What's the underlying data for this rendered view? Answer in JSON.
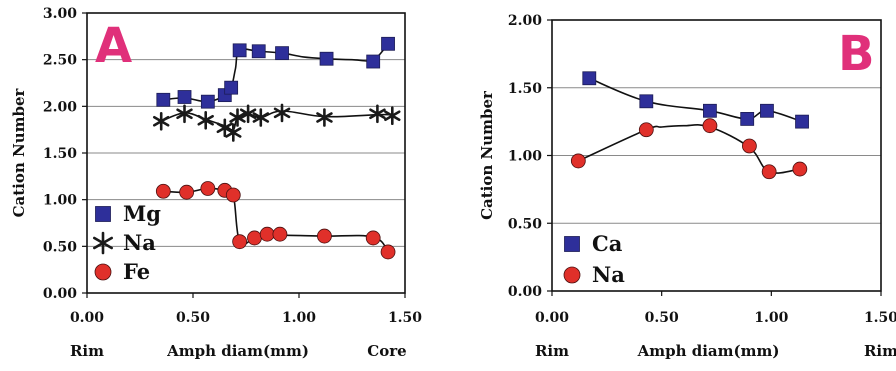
{
  "chart_data": [
    {
      "panel": "A",
      "type": "scatter",
      "ylabel": "Cation Number",
      "xlabel": "Amph diam(mm)",
      "x_end_labels": [
        "Rim",
        "Core"
      ],
      "xlim": [
        0,
        1.5
      ],
      "ylim": [
        0,
        3
      ],
      "xticks": [
        "0.00",
        "0.50",
        "1.00",
        "1.50"
      ],
      "yticks": [
        "0.00",
        "0.50",
        "1.00",
        "1.50",
        "2.00",
        "2.50",
        "3.00"
      ],
      "grid": true,
      "legend_position": "bottom-left",
      "series": [
        {
          "name": "Mg",
          "marker": "square",
          "color": "#2e2f9a",
          "x": [
            0.36,
            0.46,
            0.57,
            0.65,
            0.68,
            0.72,
            0.81,
            0.92,
            1.13,
            1.35,
            1.42
          ],
          "y": [
            2.07,
            2.1,
            2.05,
            2.12,
            2.2,
            2.6,
            2.59,
            2.57,
            2.51,
            2.48,
            2.67
          ],
          "curve_x": [
            0.36,
            0.46,
            0.57,
            0.65,
            0.68,
            0.7,
            0.72,
            0.81,
            0.92,
            1.02,
            1.13,
            1.25,
            1.35,
            1.42
          ],
          "curve_y": [
            2.07,
            2.09,
            2.05,
            2.12,
            2.2,
            2.4,
            2.6,
            2.59,
            2.57,
            2.53,
            2.51,
            2.5,
            2.5,
            2.67
          ]
        },
        {
          "name": "Na",
          "marker": "star",
          "color": "#1a1a1a",
          "x": [
            0.35,
            0.46,
            0.56,
            0.65,
            0.69,
            0.71,
            0.76,
            0.82,
            0.92,
            1.12,
            1.37,
            1.44
          ],
          "y": [
            1.84,
            1.92,
            1.85,
            1.77,
            1.72,
            1.88,
            1.92,
            1.88,
            1.93,
            1.88,
            1.92,
            1.9
          ],
          "curve_x": [
            0.35,
            0.46,
            0.56,
            0.65,
            0.69,
            0.71,
            0.76,
            0.82,
            0.92,
            1.12,
            1.37,
            1.44
          ],
          "curve_y": [
            1.84,
            1.93,
            1.86,
            1.79,
            1.75,
            1.88,
            1.92,
            1.88,
            1.95,
            1.89,
            1.91,
            1.91
          ]
        },
        {
          "name": "Fe",
          "marker": "circle",
          "color": "#e0302a",
          "x": [
            0.36,
            0.47,
            0.57,
            0.65,
            0.69,
            0.72,
            0.79,
            0.85,
            0.91,
            1.12,
            1.35,
            1.42
          ],
          "y": [
            1.09,
            1.08,
            1.12,
            1.1,
            1.05,
            0.55,
            0.59,
            0.63,
            0.63,
            0.61,
            0.59,
            0.44
          ],
          "curve_x": [
            0.36,
            0.47,
            0.57,
            0.65,
            0.69,
            0.72,
            0.79,
            0.85,
            0.91,
            1.12,
            1.35,
            1.42
          ],
          "curve_y": [
            1.09,
            1.08,
            1.12,
            1.1,
            1.05,
            0.55,
            0.59,
            0.63,
            0.62,
            0.61,
            0.6,
            0.44
          ]
        }
      ]
    },
    {
      "panel": "B",
      "type": "scatter",
      "ylabel": "Cation Number",
      "xlabel": "Amph diam(mm)",
      "x_end_labels": [
        "Rim",
        "Rim"
      ],
      "xlim": [
        0,
        1.5
      ],
      "ylim": [
        0,
        2
      ],
      "xticks": [
        "0.00",
        "0.50",
        "1.00",
        "1.50"
      ],
      "yticks": [
        "0.00",
        "0.50",
        "1.00",
        "1.50",
        "2.00"
      ],
      "grid": true,
      "legend_position": "bottom-left",
      "series": [
        {
          "name": "Ca",
          "marker": "square",
          "color": "#2e2f9a",
          "x": [
            0.17,
            0.43,
            0.72,
            0.89,
            0.98,
            1.14
          ],
          "y": [
            1.57,
            1.4,
            1.33,
            1.27,
            1.33,
            1.25
          ],
          "curve_x": [
            0.17,
            0.43,
            0.72,
            0.89,
            0.98,
            1.14
          ],
          "curve_y": [
            1.57,
            1.4,
            1.33,
            1.27,
            1.33,
            1.25
          ]
        },
        {
          "name": "Na",
          "marker": "circle",
          "color": "#e0302a",
          "x": [
            0.12,
            0.43,
            0.72,
            0.9,
            0.99,
            1.13
          ],
          "y": [
            0.96,
            1.19,
            1.22,
            1.07,
            0.88,
            0.9
          ],
          "curve_x": [
            0.12,
            0.43,
            0.5,
            0.6,
            0.72,
            0.9,
            0.99,
            1.13
          ],
          "curve_y": [
            0.96,
            1.19,
            1.21,
            1.22,
            1.21,
            1.06,
            0.88,
            0.9
          ]
        }
      ]
    }
  ]
}
